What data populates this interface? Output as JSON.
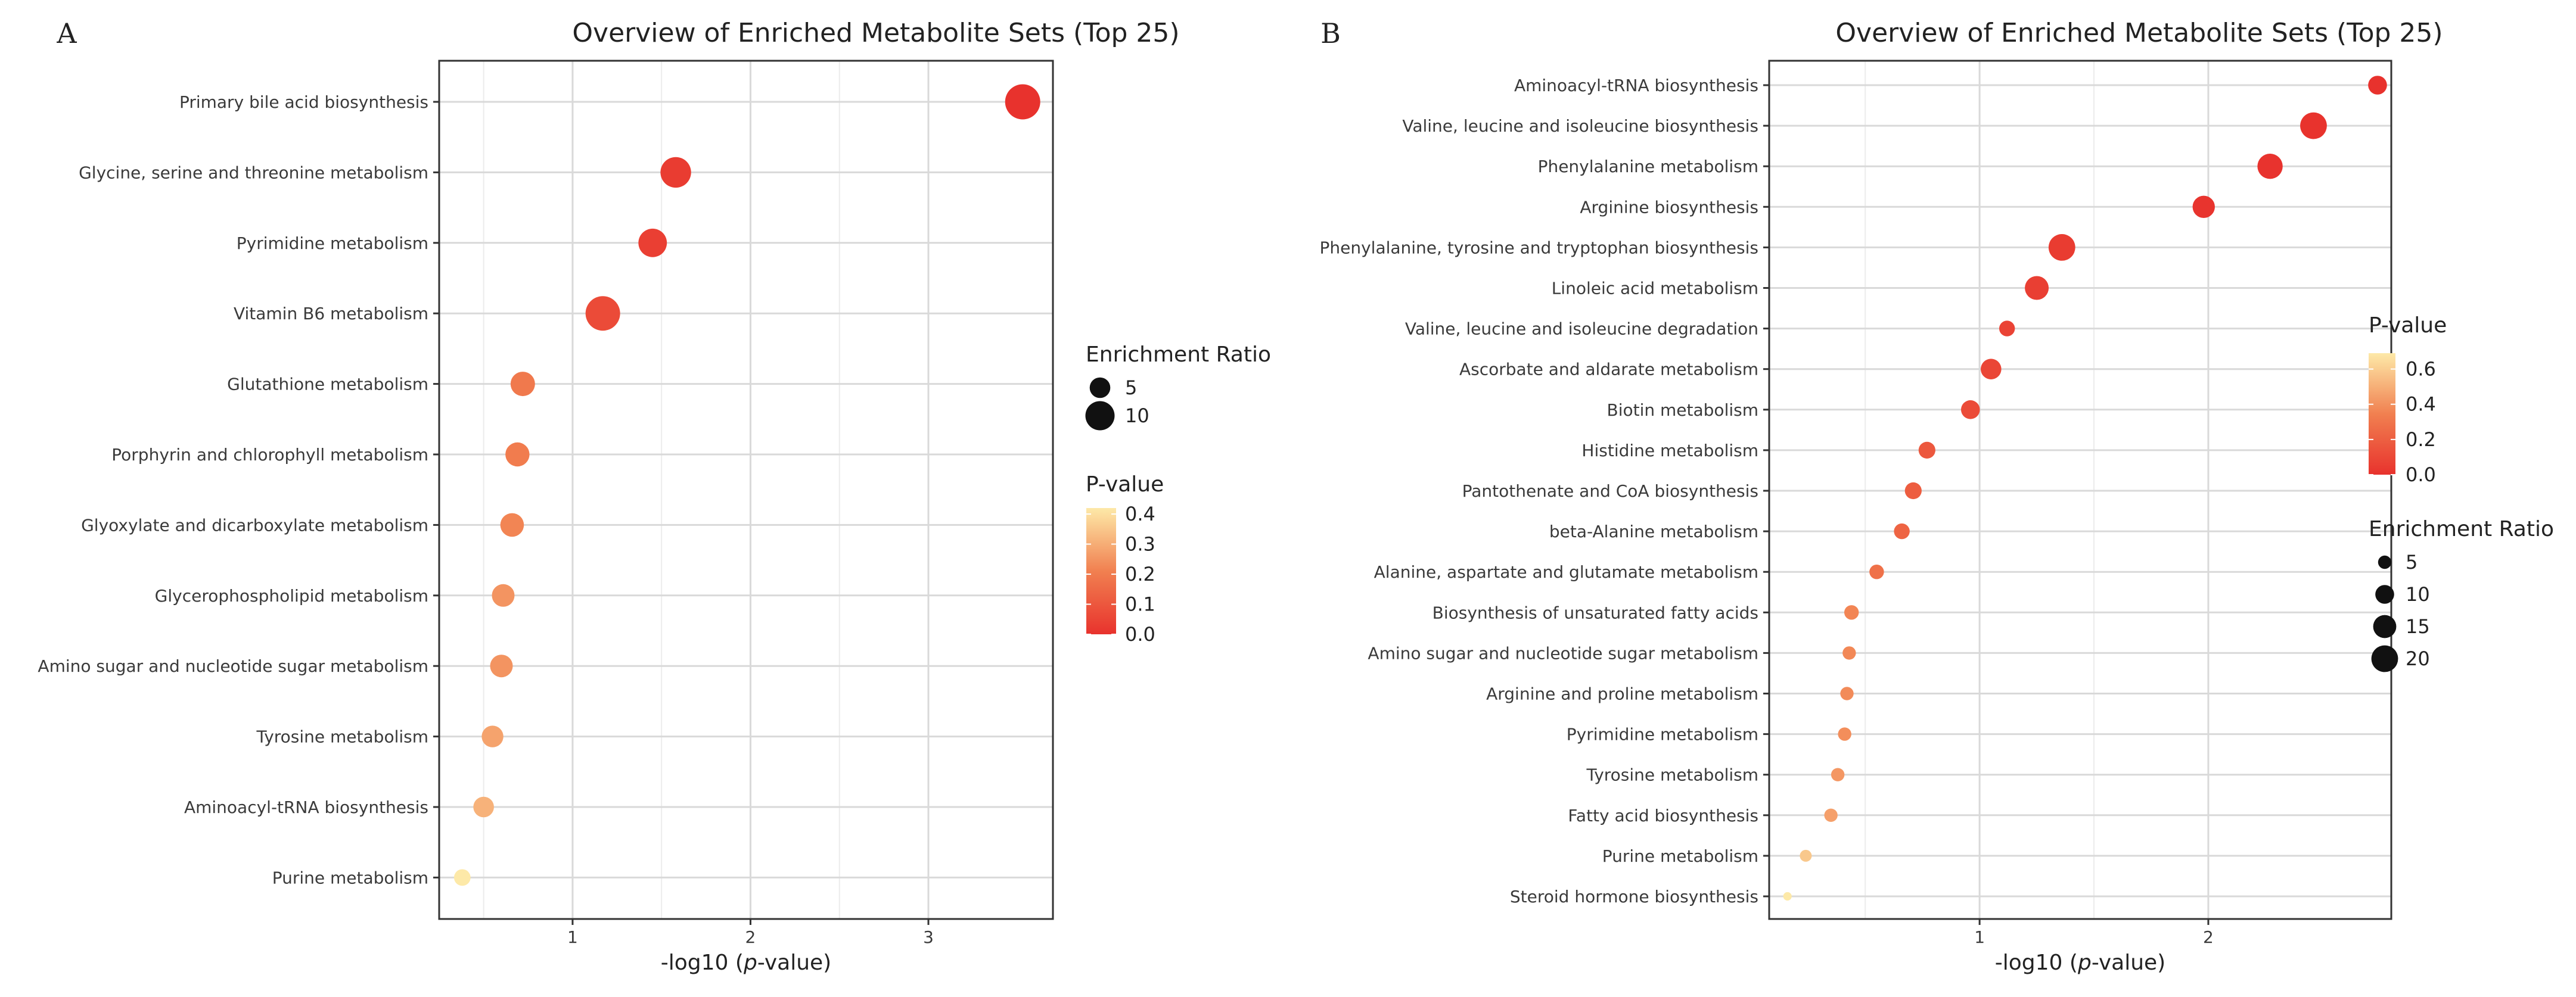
{
  "chart_data": [
    {
      "panel_label": "A",
      "type": "scatter",
      "title": "Overview of Enriched Metabolite Sets (Top 25)",
      "xlabel_prefix": "-log10 (",
      "xlabel_italic": "p",
      "xlabel_suffix": "-value)",
      "x_range": [
        0.25,
        3.7
      ],
      "x_ticks": [
        1,
        2,
        3
      ],
      "x_tick_labels": [
        "1",
        "2",
        "3"
      ],
      "grid": true,
      "legend_position": "right",
      "categories": [
        "Primary bile acid biosynthesis",
        "Glycine, serine and threonine metabolism",
        "Pyrimidine metabolism",
        "Vitamin B6 metabolism",
        "Glutathione metabolism",
        "Porphyrin and chlorophyll metabolism",
        "Glyoxylate and dicarboxylate metabolism",
        "Glycerophospholipid metabolism",
        "Amino sugar and nucleotide sugar metabolism",
        "Tyrosine metabolism",
        "Aminoacyl-tRNA biosynthesis",
        "Purine metabolism"
      ],
      "x": [
        3.53,
        1.58,
        1.45,
        1.17,
        0.72,
        0.69,
        0.66,
        0.61,
        0.6,
        0.55,
        0.5,
        0.38
      ],
      "pvalue": [
        0.0003,
        0.026,
        0.035,
        0.068,
        0.19,
        0.2,
        0.22,
        0.25,
        0.25,
        0.28,
        0.31,
        0.42
      ],
      "enrichment_ratio": [
        14.5,
        11.0,
        9.5,
        14.0,
        7.0,
        6.8,
        6.5,
        6.0,
        6.0,
        5.5,
        5.0,
        3.2
      ],
      "size_legend": {
        "title": "Enrichment Ratio",
        "values": [
          5,
          10
        ],
        "labels": [
          "5",
          "10"
        ]
      },
      "color_legend": {
        "title": "P-value",
        "min": 0.0,
        "max": 0.42,
        "ticks": [
          0.0,
          0.1,
          0.2,
          0.3,
          0.4
        ],
        "tick_labels": [
          "0.0",
          "0.1",
          "0.2",
          "0.3",
          "0.4"
        ]
      },
      "legend_order": [
        "size",
        "color"
      ]
    },
    {
      "panel_label": "B",
      "type": "scatter",
      "title": "Overview of Enriched Metabolite Sets (Top 25)",
      "xlabel_prefix": "-log10 (",
      "xlabel_italic": "p",
      "xlabel_suffix": "-value)",
      "x_range": [
        0.08,
        2.8
      ],
      "x_ticks": [
        1,
        2
      ],
      "x_tick_labels": [
        "1",
        "2"
      ],
      "grid": true,
      "legend_position": "right",
      "categories": [
        "Aminoacyl-tRNA biosynthesis",
        "Valine, leucine and isoleucine biosynthesis",
        "Phenylalanine metabolism",
        "Arginine biosynthesis",
        "Phenylalanine, tyrosine and tryptophan biosynthesis",
        "Linoleic acid metabolism",
        "Valine, leucine and isoleucine degradation",
        "Ascorbate and aldarate metabolism",
        "Biotin metabolism",
        "Histidine metabolism",
        "Pantothenate and CoA biosynthesis",
        "beta-Alanine metabolism",
        "Alanine, aspartate and glutamate metabolism",
        "Biosynthesis of unsaturated fatty acids",
        "Amino sugar and nucleotide sugar metabolism",
        "Arginine and proline metabolism",
        "Pyrimidine metabolism",
        "Tyrosine metabolism",
        "Fatty acid biosynthesis",
        "Purine metabolism",
        "Steroid hormone biosynthesis"
      ],
      "x": [
        2.74,
        2.46,
        2.27,
        1.98,
        1.36,
        1.25,
        1.12,
        1.05,
        0.96,
        0.77,
        0.71,
        0.66,
        0.55,
        0.44,
        0.43,
        0.42,
        0.41,
        0.38,
        0.35,
        0.24,
        0.16
      ],
      "pvalue": [
        0.002,
        0.0035,
        0.0054,
        0.01,
        0.044,
        0.056,
        0.076,
        0.089,
        0.11,
        0.17,
        0.19,
        0.22,
        0.28,
        0.36,
        0.37,
        0.38,
        0.39,
        0.42,
        0.45,
        0.58,
        0.69
      ],
      "enrichment_ratio": [
        10,
        20,
        18,
        14,
        20,
        16,
        7,
        12,
        10,
        8,
        8,
        7,
        6,
        6,
        5,
        5,
        5,
        5,
        5,
        4,
        2
      ],
      "size_legend": {
        "title": "Enrichment Ratio",
        "values": [
          5,
          10,
          15,
          20
        ],
        "labels": [
          "5",
          "10",
          "15",
          "20"
        ]
      },
      "color_legend": {
        "title": "P-value",
        "min": 0.0,
        "max": 0.69,
        "ticks": [
          0.0,
          0.2,
          0.4,
          0.6
        ],
        "tick_labels": [
          "0.0",
          "0.2",
          "0.4",
          "0.6"
        ]
      },
      "legend_order": [
        "color",
        "size"
      ]
    }
  ]
}
